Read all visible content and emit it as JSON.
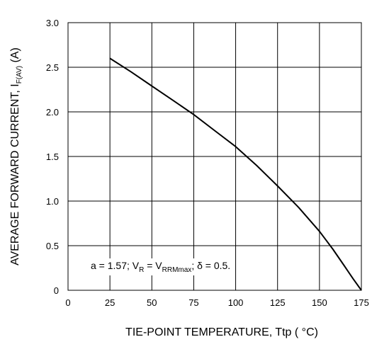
{
  "chart_data": {
    "type": "line",
    "xlabel": "TIE-POINT TEMPERATURE, Ttp ( °C)",
    "ylabel": {
      "main": "AVERAGE FORWARD CURRENT, I",
      "sub": "F(AV)",
      "unit": " (A)"
    },
    "xlim": [
      0,
      175
    ],
    "ylim": [
      0,
      3.0
    ],
    "xticks": [
      0,
      25,
      50,
      75,
      100,
      125,
      150,
      175
    ],
    "xtick_labels": [
      "0",
      "25",
      "50",
      "75",
      "100",
      "125",
      "150",
      "175"
    ],
    "yticks": [
      0,
      0.5,
      1.0,
      1.5,
      2.0,
      2.5,
      3.0
    ],
    "ytick_labels": [
      "0",
      "0.5",
      "1.0",
      "1.5",
      "2.0",
      "2.5",
      "3.0"
    ],
    "grid": true,
    "series": [
      {
        "x": [
          25,
          37.5,
          50,
          62.5,
          75,
          87.5,
          100,
          112.5,
          125,
          137.5,
          150,
          158,
          165,
          170,
          175
        ],
        "y": [
          2.6,
          2.45,
          2.29,
          2.13,
          1.97,
          1.79,
          1.61,
          1.4,
          1.17,
          0.93,
          0.66,
          0.46,
          0.27,
          0.13,
          0.0
        ]
      }
    ],
    "annotation": {
      "parts": [
        {
          "text": "a = 1.57; V",
          "sub": false
        },
        {
          "text": "R",
          "sub": true
        },
        {
          "text": " = V",
          "sub": false
        },
        {
          "text": "RRMmax",
          "sub": true
        },
        {
          "text": "; δ = 0.5.",
          "sub": false
        }
      ]
    }
  }
}
